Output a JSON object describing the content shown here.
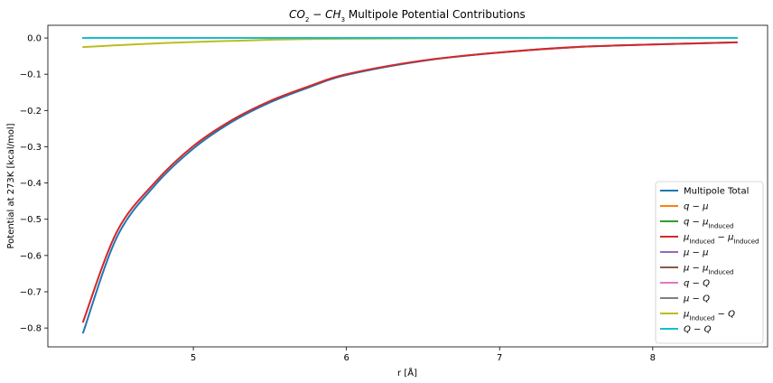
{
  "chart_data": {
    "type": "line",
    "title_parts": [
      {
        "text": "CO",
        "style": "italic"
      },
      {
        "text": "2",
        "style": "sub"
      },
      {
        "text": " − ",
        "style": "normal"
      },
      {
        "text": "CH",
        "style": "italic"
      },
      {
        "text": "3",
        "style": "sub"
      },
      {
        "text": " Multipole Potential Contributions",
        "style": "normal"
      }
    ],
    "xlabel": "r [Å]",
    "ylabel": "Potential at 273K [kcal/mol]",
    "xlim": [
      4.05,
      8.75
    ],
    "ylim": [
      -0.852,
      0.035
    ],
    "xticks": [
      5,
      6,
      7,
      8
    ],
    "yticks": [
      0.0,
      -0.1,
      -0.2,
      -0.3,
      -0.4,
      -0.5,
      -0.6,
      -0.7,
      -0.8
    ],
    "xtick_labels": [
      "5",
      "6",
      "7",
      "8"
    ],
    "ytick_labels": [
      "0.0",
      "−0.1",
      "−0.2",
      "−0.3",
      "−0.4",
      "−0.5",
      "−0.6",
      "−0.7",
      "−0.8"
    ],
    "legend_position": "lower-right",
    "x": [
      4.28,
      4.5,
      4.75,
      5.0,
      5.25,
      5.5,
      5.75,
      6.0,
      6.5,
      7.0,
      7.5,
      8.0,
      8.55
    ],
    "series": [
      {
        "name_parts": [
          {
            "text": "Multipole Total",
            "style": "normal"
          }
        ],
        "color": "#1f77b4",
        "values": [
          -0.813,
          -0.55,
          -0.406,
          -0.305,
          -0.232,
          -0.178,
          -0.137,
          -0.102,
          -0.063,
          -0.04,
          -0.025,
          -0.018,
          -0.012
        ]
      },
      {
        "name_parts": [
          {
            "text": "q",
            "style": "italic"
          },
          {
            "text": " − ",
            "style": "normal"
          },
          {
            "text": "μ",
            "style": "italic"
          }
        ],
        "color": "#ff7f0e",
        "values": [
          0,
          0,
          0,
          0,
          0,
          0,
          0,
          0,
          0,
          0,
          0,
          0,
          0
        ]
      },
      {
        "name_parts": [
          {
            "text": "q",
            "style": "italic"
          },
          {
            "text": " − ",
            "style": "normal"
          },
          {
            "text": "μ",
            "style": "italic"
          },
          {
            "text": "Induced",
            "style": "sub"
          }
        ],
        "color": "#2ca02c",
        "values": [
          0,
          0,
          0,
          0,
          0,
          0,
          0,
          0,
          0,
          0,
          0,
          0,
          0
        ]
      },
      {
        "name_parts": [
          {
            "text": "μ",
            "style": "italic"
          },
          {
            "text": "Induced",
            "style": "sub"
          },
          {
            "text": " − ",
            "style": "normal"
          },
          {
            "text": "μ",
            "style": "italic"
          },
          {
            "text": "Induced",
            "style": "sub"
          }
        ],
        "color": "#d62728",
        "values": [
          -0.783,
          -0.535,
          -0.398,
          -0.298,
          -0.227,
          -0.174,
          -0.134,
          -0.1,
          -0.062,
          -0.04,
          -0.025,
          -0.018,
          -0.012
        ]
      },
      {
        "name_parts": [
          {
            "text": "μ",
            "style": "italic"
          },
          {
            "text": " − ",
            "style": "normal"
          },
          {
            "text": "μ",
            "style": "italic"
          }
        ],
        "color": "#9467bd",
        "values": [
          0,
          0,
          0,
          0,
          0,
          0,
          0,
          0,
          0,
          0,
          0,
          0,
          0
        ]
      },
      {
        "name_parts": [
          {
            "text": "μ",
            "style": "italic"
          },
          {
            "text": " − ",
            "style": "normal"
          },
          {
            "text": "μ",
            "style": "italic"
          },
          {
            "text": "Induced",
            "style": "sub"
          }
        ],
        "color": "#8c564b",
        "values": [
          0,
          0,
          0,
          0,
          0,
          0,
          0,
          0,
          0,
          0,
          0,
          0,
          0
        ]
      },
      {
        "name_parts": [
          {
            "text": "q",
            "style": "italic"
          },
          {
            "text": " − ",
            "style": "normal"
          },
          {
            "text": "Q",
            "style": "italic"
          }
        ],
        "color": "#e377c2",
        "values": [
          0,
          0,
          0,
          0,
          0,
          0,
          0,
          0,
          0,
          0,
          0,
          0,
          0
        ]
      },
      {
        "name_parts": [
          {
            "text": "μ",
            "style": "italic"
          },
          {
            "text": " − ",
            "style": "normal"
          },
          {
            "text": "Q",
            "style": "italic"
          }
        ],
        "color": "#7f7f7f",
        "values": [
          0,
          0,
          0,
          0,
          0,
          0,
          0,
          0,
          0,
          0,
          0,
          0,
          0
        ]
      },
      {
        "name_parts": [
          {
            "text": "μ",
            "style": "italic"
          },
          {
            "text": "Induced",
            "style": "sub"
          },
          {
            "text": " − ",
            "style": "normal"
          },
          {
            "text": "Q",
            "style": "italic"
          }
        ],
        "color": "#bcbd22",
        "values": [
          -0.025,
          -0.02,
          -0.015,
          -0.011,
          -0.008,
          -0.005,
          -0.003,
          -0.002,
          -0.001,
          -0.0005,
          -0.0002,
          -0.0001,
          0
        ]
      },
      {
        "name_parts": [
          {
            "text": "Q",
            "style": "italic"
          },
          {
            "text": " − ",
            "style": "normal"
          },
          {
            "text": "Q",
            "style": "italic"
          }
        ],
        "color": "#17becf",
        "values": [
          0,
          0,
          0,
          0,
          0,
          0,
          0,
          0,
          0,
          0,
          0,
          0,
          0
        ]
      }
    ]
  }
}
